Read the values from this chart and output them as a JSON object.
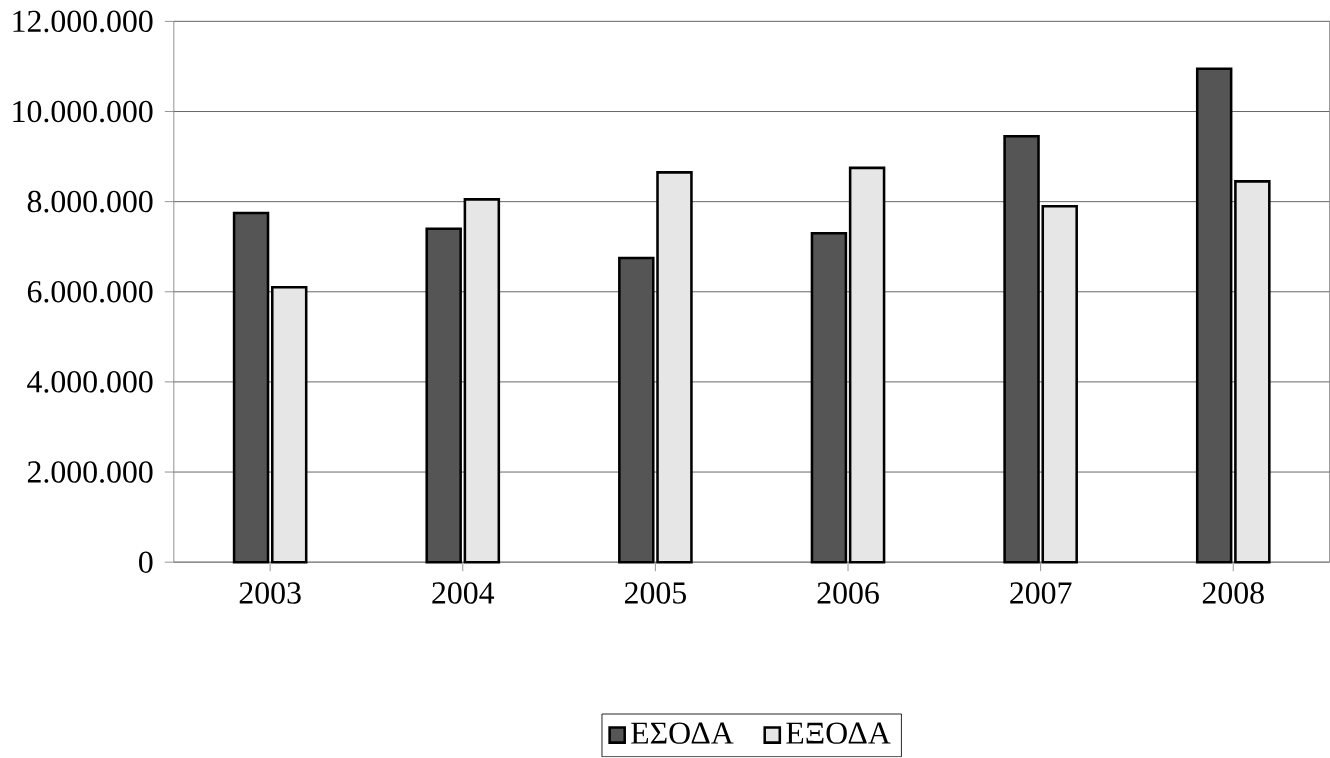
{
  "chart_data": {
    "type": "bar",
    "categories": [
      "2003",
      "2004",
      "2005",
      "2006",
      "2007",
      "2008"
    ],
    "series": [
      {
        "name": "ΕΣΟΔΑ",
        "color": "#555555",
        "values": [
          7750000,
          7400000,
          6750000,
          7300000,
          9450000,
          10950000
        ]
      },
      {
        "name": "ΕΞΟΔΑ",
        "color": "#e6e6e6",
        "values": [
          6100000,
          8050000,
          8650000,
          8750000,
          7900000,
          8450000
        ]
      }
    ],
    "ylim": [
      0,
      12000000
    ],
    "yticks": [
      {
        "value": 0,
        "label": "0"
      },
      {
        "value": 2000000,
        "label": "2.000.000"
      },
      {
        "value": 4000000,
        "label": "4.000.000"
      },
      {
        "value": 6000000,
        "label": "6.000.000"
      },
      {
        "value": 8000000,
        "label": "8.000.000"
      },
      {
        "value": 10000000,
        "label": "10.000.000"
      },
      {
        "value": 12000000,
        "label": "12.000.000"
      }
    ],
    "grid": "y",
    "legend": "bottom"
  }
}
